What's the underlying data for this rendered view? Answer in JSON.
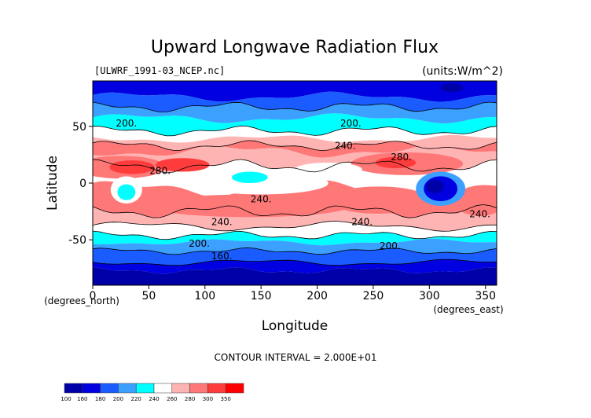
{
  "chart_data": {
    "type": "heatmap",
    "title": "Upward Longwave Radiation Flux",
    "file_label": "[ULWRF_1991-03_NCEP.nc]",
    "units_label": "(units:W/m^2)",
    "xlabel": "Longitude",
    "ylabel": "Latitude",
    "x_units_label": "(degrees_east)",
    "y_units_label": "(degrees_north)",
    "xlim": [
      0,
      360
    ],
    "ylim": [
      -90,
      90
    ],
    "x_ticks": [
      "0",
      "50",
      "100",
      "150",
      "200",
      "250",
      "300",
      "350"
    ],
    "y_ticks": [
      "50",
      "0",
      "-50"
    ],
    "contour_interval_text": "CONTOUR INTERVAL = 2.000E+01",
    "contour_labels": [
      "200.",
      "200.",
      "240.",
      "280.",
      "280.",
      "240.",
      "240.",
      "240.",
      "240.",
      "200.",
      "200.",
      "160."
    ],
    "colorbar": {
      "levels": [
        "100",
        "160",
        "180",
        "200",
        "220",
        "240",
        "260",
        "280",
        "300",
        "350"
      ],
      "colors": [
        "#0000a8",
        "#0000e0",
        "#1a5cff",
        "#3ca0ff",
        "#00ffff",
        "#ffffff",
        "#ffb4b4",
        "#ff7878",
        "#ff3c3c",
        "#ff0000"
      ]
    },
    "grid": false,
    "legend": "colorbar-bottom-left"
  }
}
